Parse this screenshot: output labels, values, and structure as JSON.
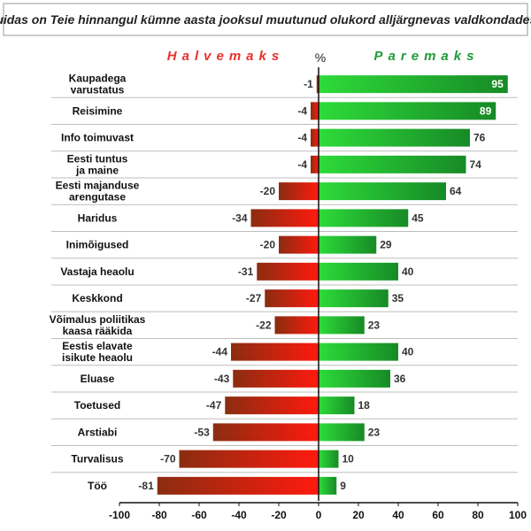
{
  "chart_data": {
    "type": "bar",
    "orientation": "horizontal-diverging",
    "title": "Kuidas on Teie hinnangul kümne aasta jooksul muutunud olukord alljärgnevas valdkondades?",
    "left_label": "Halvemaks",
    "right_label": "Paremaks",
    "unit_label": "%",
    "categories": [
      [
        "Kaupadega",
        "varustatus"
      ],
      [
        "Reisimine"
      ],
      [
        "Info toimuvast"
      ],
      [
        "Eesti tuntus",
        "ja maine"
      ],
      [
        "Eesti majanduse",
        "arengutase"
      ],
      [
        "Haridus"
      ],
      [
        "Inimõigused"
      ],
      [
        "Vastaja heaolu"
      ],
      [
        "Keskkond"
      ],
      [
        "Võimalus poliitikas",
        "kaasa rääkida"
      ],
      [
        "Eestis elavate",
        "isikute heaolu"
      ],
      [
        "Eluase"
      ],
      [
        "Toetused"
      ],
      [
        "Arstiabi"
      ],
      [
        "Turvalisus"
      ],
      [
        "Töö"
      ]
    ],
    "series": [
      {
        "name": "Halvemaks",
        "values": [
          -1,
          -4,
          -4,
          -4,
          -20,
          -34,
          -20,
          -31,
          -27,
          -22,
          -44,
          -43,
          -47,
          -53,
          -70,
          -81
        ]
      },
      {
        "name": "Paremaks",
        "values": [
          95,
          89,
          76,
          74,
          64,
          45,
          29,
          40,
          35,
          23,
          40,
          36,
          18,
          23,
          10,
          9
        ]
      }
    ],
    "xlim": [
      -100,
      100
    ],
    "xticks": [
      -100,
      -80,
      -60,
      -40,
      -20,
      0,
      20,
      40,
      60,
      80,
      100
    ],
    "colors": {
      "negative_dark": "#8a2d10",
      "negative_light": "#ff1a0e",
      "positive_light": "#2edb3a",
      "positive_dark": "#178a26",
      "halvemaks_text": "#e8302a",
      "paremaks_text": "#1f9a36"
    }
  }
}
